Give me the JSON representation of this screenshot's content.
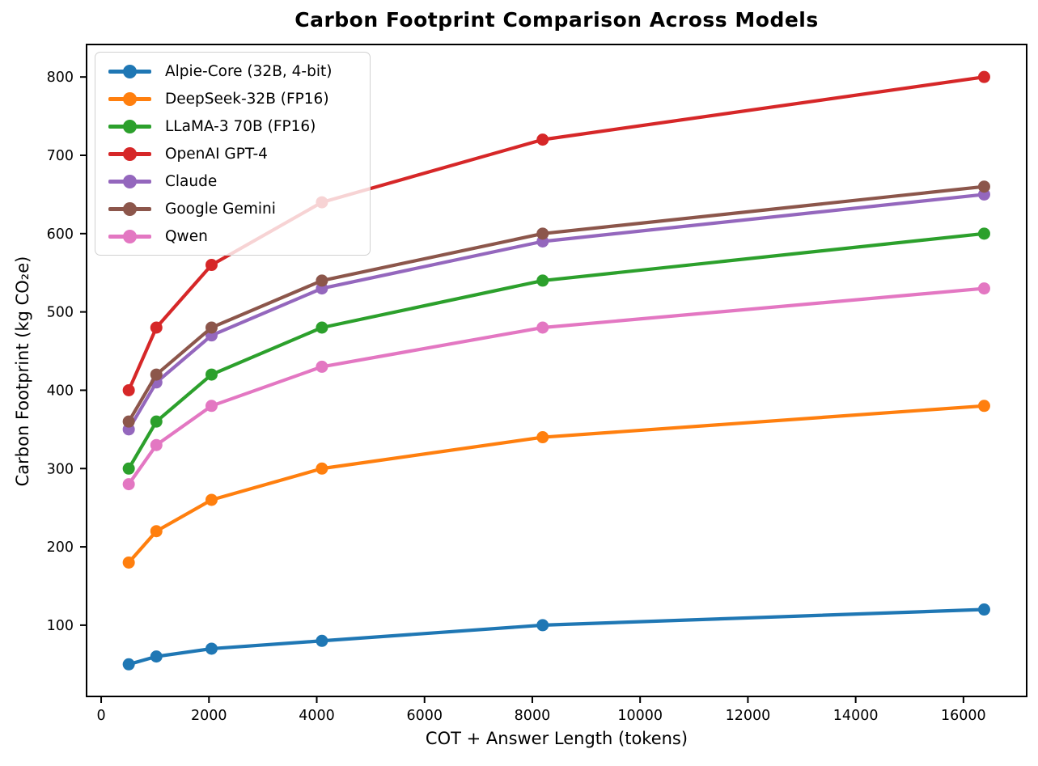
{
  "title": "Carbon Footprint Comparison Across Models",
  "chart_data": {
    "type": "line",
    "title": "Carbon Footprint Comparison Across Models",
    "xlabel": "COT + Answer Length (tokens)",
    "ylabel": "Carbon Footprint (kg CO₂e)",
    "x": [
      512,
      1024,
      2048,
      4096,
      8192,
      16384
    ],
    "series": [
      {
        "name": "Alpie-Core (32B, 4-bit)",
        "color": "#1f77b4",
        "values": [
          50,
          60,
          70,
          80,
          100,
          120
        ]
      },
      {
        "name": "DeepSeek-32B (FP16)",
        "color": "#ff7f0e",
        "values": [
          180,
          220,
          260,
          300,
          340,
          380
        ]
      },
      {
        "name": "LLaMA-3 70B (FP16)",
        "color": "#2ca02c",
        "values": [
          300,
          360,
          420,
          480,
          540,
          600
        ]
      },
      {
        "name": "OpenAI GPT-4",
        "color": "#d62728",
        "values": [
          400,
          480,
          560,
          640,
          720,
          800
        ]
      },
      {
        "name": "Claude",
        "color": "#9467bd",
        "values": [
          350,
          410,
          470,
          530,
          590,
          650
        ]
      },
      {
        "name": "Google Gemini",
        "color": "#8c564b",
        "values": [
          360,
          420,
          480,
          540,
          600,
          660
        ]
      },
      {
        "name": "Qwen",
        "color": "#e377c2",
        "values": [
          280,
          330,
          380,
          430,
          480,
          530
        ]
      }
    ],
    "xticks": [
      0,
      2000,
      4000,
      6000,
      8000,
      10000,
      12000,
      14000,
      16000
    ],
    "yticks": [
      100,
      200,
      300,
      400,
      500,
      600,
      700,
      800
    ],
    "xlim": [
      -271,
      17173
    ],
    "ylim": [
      9,
      841.5
    ],
    "grid": false,
    "legend_position": "upper-left",
    "axis_color": "#000000",
    "background_color": "#ffffff"
  }
}
